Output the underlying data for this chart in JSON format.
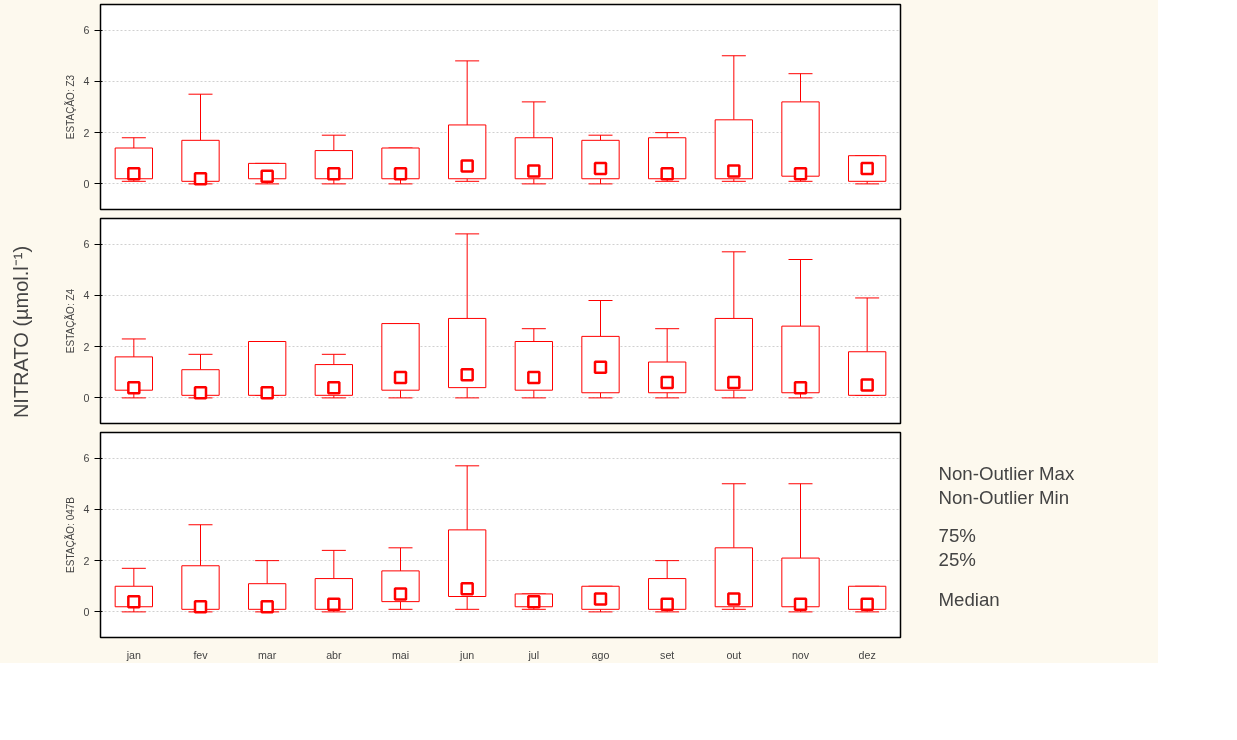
{
  "chart_data": [
    {
      "type": "box",
      "ylabel": "ESTAÇÃO: Z3",
      "categories": [
        null,
        null,
        null,
        null,
        null,
        null,
        null,
        null,
        null,
        null,
        null,
        null
      ],
      "ylim": [
        -1,
        7
      ],
      "yticks": [
        0,
        2,
        4,
        6
      ],
      "grid": "y",
      "tick_labels": "y",
      "series": [
        {
          "color": "#ff0000",
          "boxes": [
            {
              "low": 0.1,
              "q1": 0.2,
              "median": 0.4,
              "q3": 1.4,
              "high": 1.8
            },
            {
              "low": 0.0,
              "q1": 0.1,
              "median": 0.2,
              "q3": 1.7,
              "high": 3.5
            },
            {
              "low": 0.0,
              "q1": 0.2,
              "median": 0.3,
              "q3": 0.8,
              "high": 0.8
            },
            {
              "low": 0.0,
              "q1": 0.2,
              "median": 0.4,
              "q3": 1.3,
              "high": 1.9
            },
            {
              "low": 0.0,
              "q1": 0.2,
              "median": 0.4,
              "q3": 1.4,
              "high": 1.4
            },
            {
              "low": 0.1,
              "q1": 0.2,
              "median": 0.7,
              "q3": 2.3,
              "high": 4.8
            },
            {
              "low": 0.0,
              "q1": 0.2,
              "median": 0.5,
              "q3": 1.8,
              "high": 3.2
            },
            {
              "low": 0.0,
              "q1": 0.2,
              "median": 0.6,
              "q3": 1.7,
              "high": 1.9
            },
            {
              "low": 0.1,
              "q1": 0.2,
              "median": 0.4,
              "q3": 1.8,
              "high": 2.0
            },
            {
              "low": 0.1,
              "q1": 0.2,
              "median": 0.5,
              "q3": 2.5,
              "high": 5.0
            },
            {
              "low": 0.1,
              "q1": 0.3,
              "median": 0.4,
              "q3": 3.2,
              "high": 4.3
            },
            {
              "low": 0.0,
              "q1": 0.1,
              "median": 0.6,
              "q3": 1.1,
              "high": 1.1
            }
          ]
        }
      ]
    },
    {
      "type": "box",
      "ylabel": "ESTAÇÃO: Z4",
      "categories": [
        null,
        null,
        null,
        null,
        null,
        null,
        null,
        null,
        null,
        null,
        null,
        null
      ],
      "ylim": [
        -1,
        7
      ],
      "yticks": [
        0,
        2,
        4,
        6
      ],
      "grid": "y",
      "tick_labels": "y",
      "annotations": [
        "NITRATO (µmol.l⁻¹)"
      ],
      "series": [
        {
          "color": "#ff0000",
          "boxes": [
            {
              "low": 0.0,
              "q1": 0.3,
              "median": 0.4,
              "q3": 1.6,
              "high": 2.3
            },
            {
              "low": 0.0,
              "q1": 0.1,
              "median": 0.2,
              "q3": 1.1,
              "high": 1.7
            },
            {
              "low": 0.1,
              "q1": 0.1,
              "median": 0.2,
              "q3": 2.2,
              "high": 2.2
            },
            {
              "low": 0.0,
              "q1": 0.1,
              "median": 0.4,
              "q3": 1.3,
              "high": 1.7
            },
            {
              "low": 0.0,
              "q1": 0.3,
              "median": 0.8,
              "q3": 2.9,
              "high": 2.9
            },
            {
              "low": 0.0,
              "q1": 0.4,
              "median": 0.9,
              "q3": 3.1,
              "high": 6.4
            },
            {
              "low": 0.0,
              "q1": 0.3,
              "median": 0.8,
              "q3": 2.2,
              "high": 2.7
            },
            {
              "low": 0.0,
              "q1": 0.2,
              "median": 1.2,
              "q3": 2.4,
              "high": 3.8
            },
            {
              "low": 0.0,
              "q1": 0.2,
              "median": 0.6,
              "q3": 1.4,
              "high": 2.7
            },
            {
              "low": 0.0,
              "q1": 0.3,
              "median": 0.6,
              "q3": 3.1,
              "high": 5.7
            },
            {
              "low": 0.0,
              "q1": 0.2,
              "median": 0.4,
              "q3": 2.8,
              "high": 5.4
            },
            {
              "low": 0.1,
              "q1": 0.1,
              "median": 0.5,
              "q3": 1.8,
              "high": 3.9
            }
          ]
        }
      ]
    },
    {
      "type": "box",
      "ylabel": "ESTAÇÃO: 047B",
      "categories": [
        "jan",
        "fev",
        "mar",
        "abr",
        "mai",
        "jun",
        "jul",
        "ago",
        "set",
        "out",
        "nov",
        "dez"
      ],
      "ylim": [
        -1,
        7
      ],
      "yticks": [
        0,
        2,
        4,
        6
      ],
      "grid": "y",
      "annotations": [
        "Non-Outlier Max",
        "Non-Outlier Min",
        "75%",
        "25%",
        "Median"
      ],
      "series": [
        {
          "color": "#ff0000",
          "boxes": [
            {
              "low": 0.0,
              "q1": 0.2,
              "median": 0.4,
              "q3": 1.0,
              "high": 1.7
            },
            {
              "low": 0.0,
              "q1": 0.1,
              "median": 0.2,
              "q3": 1.8,
              "high": 3.4
            },
            {
              "low": 0.0,
              "q1": 0.1,
              "median": 0.2,
              "q3": 1.1,
              "high": 2.0
            },
            {
              "low": 0.0,
              "q1": 0.1,
              "median": 0.3,
              "q3": 1.3,
              "high": 2.4
            },
            {
              "low": 0.1,
              "q1": 0.4,
              "median": 0.7,
              "q3": 1.6,
              "high": 2.5
            },
            {
              "low": 0.1,
              "q1": 0.6,
              "median": 0.9,
              "q3": 3.2,
              "high": 5.7
            },
            {
              "low": 0.1,
              "q1": 0.2,
              "median": 0.4,
              "q3": 0.7,
              "high": 0.7
            },
            {
              "low": 0.0,
              "q1": 0.1,
              "median": 0.5,
              "q3": 1.0,
              "high": 1.0
            },
            {
              "low": 0.0,
              "q1": 0.1,
              "median": 0.3,
              "q3": 1.3,
              "high": 2.0
            },
            {
              "low": 0.1,
              "q1": 0.2,
              "median": 0.5,
              "q3": 2.5,
              "high": 5.0
            },
            {
              "low": 0.0,
              "q1": 0.2,
              "median": 0.3,
              "q3": 2.1,
              "high": 5.0
            },
            {
              "low": 0.0,
              "q1": 0.1,
              "median": 0.3,
              "q3": 1.0,
              "high": 1.0
            }
          ]
        }
      ]
    }
  ]
}
